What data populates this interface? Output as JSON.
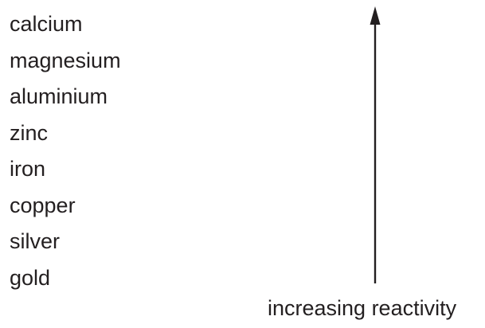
{
  "metals": [
    "calcium",
    "magnesium",
    "aluminium",
    "zinc",
    "iron",
    "copper",
    "silver",
    "gold"
  ],
  "arrow_label": "increasing reactivity",
  "colors": {
    "text": "#231f20",
    "arrow": "#231f20",
    "background": "#ffffff"
  }
}
